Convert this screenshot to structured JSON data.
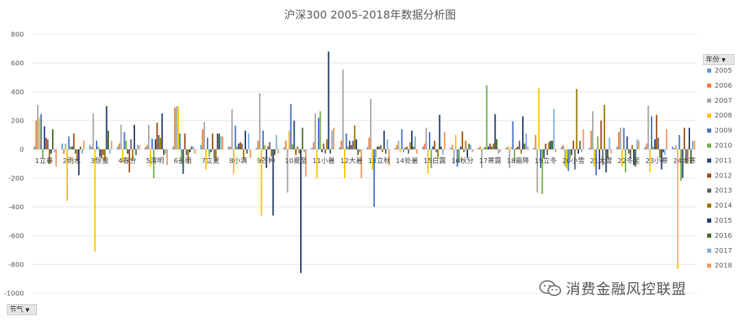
{
  "chart_data": {
    "type": "bar",
    "title": "沪深300 2005-2018年数据分析图",
    "ylim": [
      -1000,
      800
    ],
    "yticks": [
      800,
      600,
      400,
      200,
      0,
      -200,
      -400,
      -600,
      -800,
      -1000
    ],
    "grid": true,
    "legend_position": "right",
    "legend_title": "年份",
    "x_field_label": "节气",
    "categories": [
      "1立春",
      "2雨水",
      "3惊蛰",
      "4春分",
      "5清明",
      "6谷雨",
      "7立夏",
      "8小满",
      "9芒种",
      "10夏至",
      "11小暑",
      "12大暑",
      "13立秋",
      "14处暑",
      "15白露",
      "16秋分",
      "17寒露",
      "18霜降",
      "19立冬",
      "20小雪",
      "21大雪",
      "22冬至",
      "23小寒",
      "24大寒"
    ],
    "series": [
      {
        "name": "2005",
        "color": "#5b9bd5",
        "values": [
          20,
          40,
          30,
          20,
          15,
          20,
          30,
          20,
          10,
          15,
          10,
          15,
          15,
          10,
          20,
          10,
          10,
          10,
          10,
          20,
          10,
          20,
          15,
          20
        ]
      },
      {
        "name": "2006",
        "color": "#ed7d31",
        "values": [
          200,
          -30,
          20,
          40,
          30,
          290,
          140,
          20,
          60,
          60,
          50,
          60,
          80,
          30,
          40,
          30,
          20,
          20,
          100,
          30,
          130,
          120,
          40,
          10
        ]
      },
      {
        "name": "2007",
        "color": "#a5a5a5",
        "values": [
          310,
          40,
          250,
          170,
          170,
          300,
          190,
          280,
          390,
          -300,
          250,
          555,
          350,
          60,
          150,
          -100,
          -130,
          -130,
          -300,
          -120,
          265,
          150,
          305,
          30
        ]
      },
      {
        "name": "2008",
        "color": "#ffc000",
        "values": [
          220,
          -360,
          -710,
          -90,
          -120,
          300,
          -140,
          -170,
          -460,
          130,
          -200,
          -200,
          -140,
          -20,
          -170,
          100,
          10,
          20,
          425,
          -130,
          -120,
          -120,
          -160,
          -830
        ]
      },
      {
        "name": "2009",
        "color": "#4472c4",
        "values": [
          245,
          90,
          60,
          120,
          75,
          110,
          80,
          165,
          130,
          315,
          220,
          110,
          -400,
          140,
          120,
          -120,
          15,
          195,
          -130,
          -150,
          -180,
          150,
          230,
          100
        ]
      },
      {
        "name": "2010",
        "color": "#70ad47",
        "values": [
          -60,
          20,
          20,
          60,
          -200,
          -100,
          -50,
          20,
          30,
          35,
          265,
          20,
          -60,
          -20,
          -130,
          -90,
          445,
          -90,
          -310,
          -60,
          90,
          -160,
          20,
          -220
        ]
      },
      {
        "name": "2011",
        "color": "#264478",
        "values": [
          160,
          20,
          -50,
          -30,
          70,
          -170,
          -20,
          40,
          -130,
          200,
          -20,
          60,
          20,
          10,
          20,
          20,
          20,
          10,
          -60,
          -40,
          -140,
          90,
          70,
          -200
        ]
      },
      {
        "name": "2012",
        "color": "#9e480e",
        "values": [
          80,
          110,
          -60,
          -160,
          185,
          110,
          110,
          50,
          20,
          -40,
          40,
          30,
          20,
          20,
          60,
          125,
          40,
          20,
          40,
          60,
          200,
          -30,
          240,
          150
        ]
      },
      {
        "name": "2013",
        "color": "#636363",
        "values": [
          70,
          -30,
          -40,
          70,
          100,
          -40,
          -60,
          40,
          50,
          20,
          -30,
          60,
          30,
          -30,
          -20,
          -20,
          20,
          60,
          -40,
          -140,
          -110,
          -60,
          80,
          -100
        ]
      },
      {
        "name": "2014",
        "color": "#997300",
        "values": [
          -100,
          -80,
          -80,
          -80,
          80,
          -100,
          -80,
          -70,
          -50,
          -30,
          70,
          165,
          -20,
          50,
          -60,
          60,
          40,
          -30,
          50,
          420,
          310,
          30,
          -60,
          -90
        ]
      },
      {
        "name": "2015",
        "color": "#203864",
        "values": [
          -30,
          -180,
          300,
          170,
          250,
          -20,
          110,
          130,
          -460,
          -860,
          680,
          70,
          130,
          130,
          240,
          -60,
          245,
          230,
          60,
          -30,
          -160,
          -110,
          -140,
          150
        ]
      },
      {
        "name": "2016",
        "color": "#43682b",
        "values": [
          140,
          20,
          130,
          -40,
          -40,
          20,
          110,
          -30,
          -40,
          150,
          -30,
          -40,
          -30,
          20,
          20,
          40,
          70,
          40,
          60,
          60,
          -60,
          -120,
          -20,
          -100
        ]
      },
      {
        "name": "2017",
        "color": "#7cafdd",
        "values": [
          -20,
          -30,
          -30,
          30,
          -30,
          20,
          90,
          110,
          100,
          -20,
          130,
          -20,
          70,
          90,
          -40,
          30,
          -30,
          110,
          280,
          -20,
          80,
          70,
          -40,
          60
        ]
      },
      {
        "name": "2018",
        "color": "#f1975a",
        "values": [
          -120,
          60,
          60,
          30,
          -110,
          -30,
          90,
          -60,
          -30,
          -190,
          150,
          -200,
          -110,
          -30,
          120,
          -20,
          -20,
          20,
          -20,
          140,
          -30,
          60,
          140,
          60
        ]
      }
    ]
  },
  "watermark": {
    "text": "消费金融风控联盟"
  }
}
